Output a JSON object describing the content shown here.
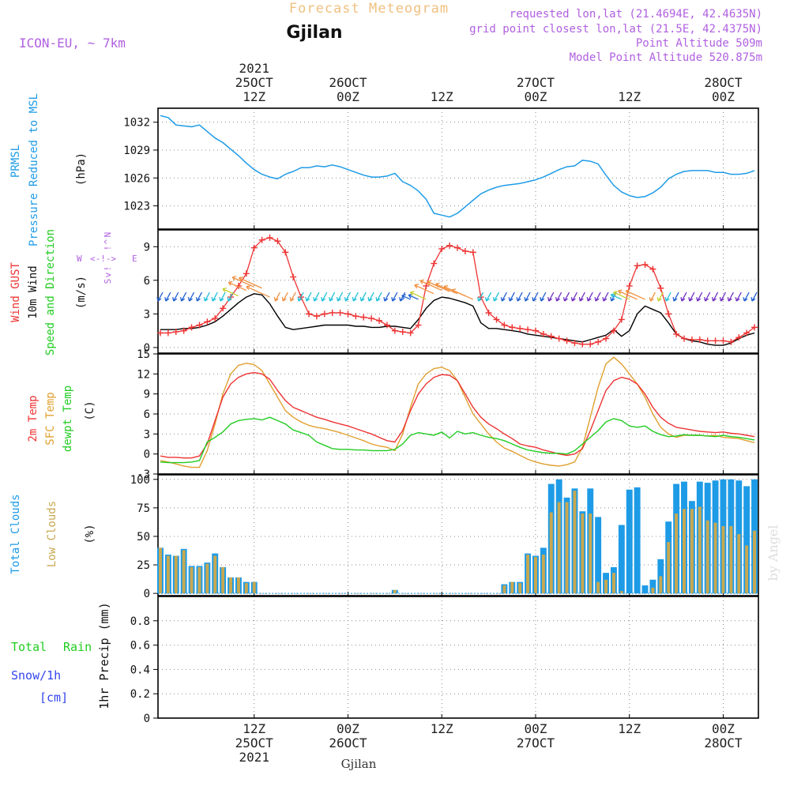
{
  "header": {
    "title": "Forecast Meteogram",
    "location": "Gjilan",
    "model": "ICON-EU, ~ 7km",
    "requested": "requested lon,lat (21.4694E, 42.4635N)",
    "grid_point": "grid point closest lon,lat (21.5E, 42.4375N)",
    "point_altitude": "Point Altitude 509m",
    "model_altitude": "Model Point Altitude 520.875m",
    "footer_location": "Gjilan",
    "watermark": "by Angel"
  },
  "colors": {
    "pressure": "#1e9be6",
    "gust": "#ee3333",
    "wind": "#000000",
    "temp": "#ee3333",
    "sfc": "#e0a030",
    "dewpt": "#22cc22",
    "total_clouds": "#1e9be6",
    "low_clouds": "#c8a850",
    "rain": "#22cc22",
    "snow": "#3344ee",
    "header_purple": "#b060e0",
    "title_orange": "#f0c080"
  },
  "time_axis": {
    "top": [
      {
        "t": 12,
        "lines": [
          "2021",
          "25OCT",
          "12Z"
        ]
      },
      {
        "t": 24,
        "lines": [
          "26OCT",
          "00Z"
        ]
      },
      {
        "t": 36,
        "lines": [
          "12Z"
        ]
      },
      {
        "t": 48,
        "lines": [
          "27OCT",
          "00Z"
        ]
      },
      {
        "t": 60,
        "lines": [
          "12Z"
        ]
      },
      {
        "t": 72,
        "lines": [
          "28OCT",
          "00Z"
        ]
      }
    ],
    "bottom": [
      {
        "t": 12,
        "lines": [
          "12Z",
          "25OCT",
          "2021"
        ]
      },
      {
        "t": 24,
        "lines": [
          "00Z",
          "26OCT"
        ]
      },
      {
        "t": 36,
        "lines": [
          "12Z"
        ]
      },
      {
        "t": 48,
        "lines": [
          "00Z",
          "27OCT"
        ]
      },
      {
        "t": 60,
        "lines": [
          "12Z"
        ]
      },
      {
        "t": 72,
        "lines": [
          "00Z",
          "28OCT"
        ]
      }
    ]
  },
  "labels": {
    "pressure": [
      "PRMSL",
      "Pressure Reduced to MSL",
      "(hPa)"
    ],
    "wind": [
      "Wind GUST",
      "10m Wind",
      "Speed and Direction",
      "(m/s)"
    ],
    "compass": {
      "n": "N",
      "s": "S",
      "w": "W",
      "e": "E",
      "arrow_up": "^",
      "arrow_down": "v",
      "horizontal": "<-!->",
      "north_bar": "!",
      "south_bar": "!"
    },
    "temp": [
      "2m Temp",
      "SFC Temp",
      "dewpt Temp",
      "(C)"
    ],
    "clouds": [
      "Total Clouds",
      "Low Clouds",
      "(%)"
    ],
    "precip": [
      "Total",
      "Rain",
      "Snow/1h",
      "[cm]",
      "1hr Precip (mm)"
    ]
  },
  "chart_data": [
    {
      "type": "line",
      "title": "PRMSL Pressure Reduced to MSL",
      "ylabel": "(hPa)",
      "ylim": [
        1020.5,
        1033.5
      ],
      "yticks": [
        1023,
        1026,
        1029,
        1032
      ],
      "x": [
        0,
        1,
        2,
        3,
        4,
        5,
        6,
        7,
        8,
        9,
        10,
        11,
        12,
        13,
        14,
        15,
        16,
        17,
        18,
        19,
        20,
        21,
        22,
        23,
        24,
        25,
        26,
        27,
        28,
        29,
        30,
        31,
        32,
        33,
        34,
        35,
        36,
        37,
        38,
        39,
        40,
        41,
        42,
        43,
        44,
        45,
        46,
        47,
        48,
        49,
        50,
        51,
        52,
        53,
        54,
        55,
        56,
        57,
        58,
        59,
        60,
        61,
        62,
        63,
        64,
        65,
        66,
        67,
        68,
        69,
        70,
        71,
        72,
        73,
        74,
        75,
        76
      ],
      "series": [
        {
          "name": "PRMSL",
          "values": [
            1032.7,
            1032.5,
            1031.7,
            1031.6,
            1031.5,
            1031.7,
            1031.0,
            1030.3,
            1029.8,
            1029.1,
            1028.4,
            1027.6,
            1026.9,
            1026.4,
            1026.1,
            1025.9,
            1026.4,
            1026.7,
            1027.1,
            1027.1,
            1027.3,
            1027.2,
            1027.4,
            1027.2,
            1026.9,
            1026.6,
            1026.3,
            1026.1,
            1026.1,
            1026.2,
            1026.5,
            1025.6,
            1025.2,
            1024.6,
            1023.7,
            1022.2,
            1022.0,
            1021.8,
            1022.2,
            1022.9,
            1023.6,
            1024.3,
            1024.7,
            1025.0,
            1025.2,
            1025.3,
            1025.4,
            1025.6,
            1025.8,
            1026.1,
            1026.5,
            1026.9,
            1027.2,
            1027.3,
            1027.9,
            1027.8,
            1027.5,
            1026.3,
            1025.2,
            1024.5,
            1024.1,
            1023.9,
            1024.0,
            1024.4,
            1025.0,
            1025.9,
            1026.4,
            1026.7,
            1026.8,
            1026.8,
            1026.8,
            1026.6,
            1026.6,
            1026.4,
            1026.4,
            1026.5,
            1026.8
          ]
        }
      ]
    },
    {
      "type": "line",
      "title": "Wind GUST / 10m Wind Speed and Direction",
      "ylabel": "(m/s)",
      "ylim": [
        -0.5,
        10.5
      ],
      "yticks": [
        0,
        3,
        6,
        9
      ],
      "series": [
        {
          "name": "Wind GUST",
          "values": [
            1.3,
            1.3,
            1.4,
            1.5,
            1.8,
            2.0,
            2.3,
            2.6,
            3.5,
            4.5,
            5.5,
            6.6,
            8.9,
            9.6,
            9.8,
            9.5,
            8.5,
            6.3,
            4.5,
            3.0,
            2.8,
            3.0,
            3.1,
            3.1,
            3.0,
            2.8,
            2.7,
            2.6,
            2.4,
            2.0,
            1.5,
            1.4,
            1.3,
            2.0,
            5.5,
            7.5,
            8.8,
            9.1,
            8.9,
            8.6,
            8.5,
            4.5,
            3.1,
            2.5,
            2.0,
            1.8,
            1.7,
            1.6,
            1.5,
            1.2,
            1.0,
            0.8,
            0.6,
            0.4,
            0.3,
            0.3,
            0.5,
            0.8,
            1.5,
            2.5,
            5.5,
            7.3,
            7.4,
            7.0,
            5.3,
            3.0,
            1.2,
            0.8,
            0.7,
            0.7,
            0.6,
            0.6,
            0.6,
            0.5,
            0.9,
            1.3,
            1.8
          ]
        },
        {
          "name": "10m Wind",
          "values": [
            1.6,
            1.6,
            1.6,
            1.7,
            1.7,
            1.8,
            2.0,
            2.3,
            2.8,
            3.4,
            4.0,
            4.5,
            4.8,
            4.7,
            3.9,
            2.8,
            1.8,
            1.6,
            1.7,
            1.8,
            1.9,
            2.0,
            2.0,
            2.0,
            2.0,
            1.9,
            1.9,
            1.8,
            1.8,
            1.9,
            1.9,
            1.8,
            1.7,
            2.5,
            3.5,
            4.2,
            4.5,
            4.4,
            4.2,
            4.0,
            3.7,
            2.2,
            1.7,
            1.7,
            1.6,
            1.5,
            1.4,
            1.2,
            1.1,
            1.0,
            0.9,
            0.8,
            0.7,
            0.6,
            0.5,
            0.7,
            0.9,
            1.1,
            1.6,
            1.0,
            1.5,
            3.0,
            3.7,
            3.4,
            3.1,
            2.2,
            1.2,
            0.8,
            0.6,
            0.5,
            0.3,
            0.2,
            0.2,
            0.4,
            0.8,
            1.1,
            1.3
          ]
        }
      ]
    },
    {
      "type": "line",
      "title": "2m Temp / SFC Temp / dewpt Temp",
      "ylabel": "(C)",
      "ylim": [
        -3,
        15
      ],
      "yticks": [
        -3,
        0,
        3,
        6,
        9,
        12,
        15
      ],
      "series": [
        {
          "name": "2m Temp",
          "values": [
            -0.3,
            -0.5,
            -0.5,
            -0.6,
            -0.6,
            -0.3,
            1.5,
            5.0,
            8.5,
            10.5,
            11.5,
            12.0,
            12.2,
            12.0,
            11.2,
            9.5,
            8.0,
            7.0,
            6.5,
            6.0,
            5.5,
            5.2,
            4.8,
            4.5,
            4.2,
            3.8,
            3.4,
            3.0,
            2.5,
            2.0,
            1.8,
            3.5,
            6.5,
            9.0,
            10.5,
            11.5,
            11.9,
            11.8,
            11.0,
            9.0,
            7.0,
            5.5,
            4.5,
            3.8,
            3.0,
            2.3,
            1.5,
            1.2,
            1.0,
            0.6,
            0.3,
            0.0,
            -0.2,
            0.0,
            0.8,
            3.5,
            6.5,
            9.5,
            11.0,
            11.5,
            11.2,
            10.5,
            9.0,
            7.0,
            5.5,
            4.6,
            4.0,
            3.8,
            3.6,
            3.4,
            3.3,
            3.2,
            3.3,
            3.1,
            3.0,
            2.8,
            2.6
          ]
        },
        {
          "name": "SFC Temp",
          "values": [
            -1.0,
            -1.2,
            -1.5,
            -1.8,
            -2.0,
            -2.0,
            0.5,
            4.5,
            9.0,
            12.0,
            13.3,
            13.6,
            13.4,
            12.5,
            10.5,
            8.5,
            6.5,
            5.5,
            4.8,
            4.3,
            4.0,
            3.8,
            3.5,
            3.2,
            2.8,
            2.4,
            2.0,
            1.5,
            1.2,
            1.0,
            0.5,
            3.0,
            7.0,
            10.5,
            12.0,
            12.8,
            13.0,
            12.5,
            11.0,
            8.5,
            6.0,
            4.5,
            3.0,
            1.8,
            0.9,
            0.4,
            -0.2,
            -0.8,
            -1.2,
            -1.5,
            -1.7,
            -1.8,
            -1.6,
            -1.2,
            1.0,
            5.5,
            10.0,
            13.5,
            14.5,
            13.5,
            12.0,
            10.5,
            8.5,
            6.0,
            4.0,
            3.0,
            2.5,
            2.8,
            2.8,
            2.8,
            2.7,
            2.8,
            2.5,
            2.4,
            2.3,
            2.0,
            1.7
          ]
        },
        {
          "name": "dewpt Temp",
          "values": [
            -1.2,
            -1.3,
            -1.3,
            -1.3,
            -1.2,
            -1.0,
            1.8,
            2.5,
            3.3,
            4.5,
            5.0,
            5.2,
            5.3,
            5.1,
            5.5,
            5.0,
            4.5,
            3.6,
            3.2,
            2.8,
            1.8,
            1.3,
            0.8,
            0.7,
            0.7,
            0.6,
            0.6,
            0.5,
            0.5,
            0.5,
            0.7,
            1.5,
            2.8,
            3.2,
            3.0,
            2.8,
            3.3,
            2.4,
            3.4,
            3.0,
            3.2,
            2.8,
            2.5,
            2.3,
            2.0,
            1.5,
            1.0,
            0.6,
            0.4,
            0.2,
            0.1,
            0.1,
            0.0,
            0.5,
            1.5,
            2.5,
            3.5,
            4.8,
            5.3,
            5.0,
            4.2,
            4.0,
            4.2,
            3.4,
            2.9,
            2.6,
            2.7,
            2.9,
            2.8,
            2.8,
            2.7,
            2.6,
            2.8,
            2.6,
            2.5,
            2.3,
            2.1
          ]
        }
      ]
    },
    {
      "type": "bar",
      "title": "Total Clouds / Low Clouds",
      "ylabel": "(%)",
      "ylim": [
        -2,
        104
      ],
      "yticks": [
        0,
        25,
        50,
        75,
        100
      ],
      "series": [
        {
          "name": "Total Clouds",
          "values": [
            40,
            34,
            33,
            39,
            24,
            24,
            27,
            35,
            23,
            14,
            14,
            10,
            10,
            0,
            0,
            0,
            0,
            0,
            0,
            0,
            0,
            0,
            0,
            0,
            0,
            0,
            0,
            0,
            0,
            0,
            3,
            0,
            0,
            0,
            0,
            0,
            0,
            0,
            0,
            0,
            0,
            0,
            0,
            0,
            8,
            10,
            10,
            35,
            33,
            40,
            96,
            100,
            84,
            92,
            72,
            92,
            67,
            18,
            23,
            60,
            91,
            93,
            7,
            12,
            30,
            63,
            96,
            98,
            81,
            98,
            97,
            99,
            100,
            100,
            99,
            94,
            100
          ]
        },
        {
          "name": "Low Clouds",
          "values": [
            40,
            33,
            33,
            38,
            23,
            23,
            26,
            33,
            23,
            14,
            14,
            9,
            10,
            0,
            0,
            0,
            0,
            0,
            0,
            0,
            0,
            0,
            0,
            0,
            0,
            0,
            0,
            0,
            0,
            0,
            3,
            0,
            0,
            0,
            0,
            0,
            0,
            0,
            0,
            0,
            0,
            0,
            0,
            0,
            7,
            10,
            9,
            34,
            32,
            34,
            71,
            80,
            80,
            90,
            70,
            70,
            10,
            12,
            18,
            2,
            0,
            0,
            0,
            5,
            15,
            45,
            70,
            74,
            74,
            76,
            64,
            62,
            59,
            59,
            52,
            42,
            55
          ]
        }
      ]
    },
    {
      "type": "bar",
      "title": "Total Rain / Snow 1h",
      "ylabel": "1hr Precip (mm)",
      "ylim": [
        0,
        1.0
      ],
      "yticks": [
        0,
        0.2,
        0.4,
        0.6,
        0.8
      ],
      "ytick_labels": [
        "0",
        "0.2",
        "0.4",
        "0.6",
        "0.8"
      ],
      "series": [
        {
          "name": "Total Rain",
          "values": [
            0,
            0,
            0,
            0,
            0,
            0,
            0,
            0,
            0,
            0,
            0,
            0,
            0,
            0,
            0,
            0,
            0,
            0,
            0,
            0,
            0,
            0,
            0,
            0,
            0,
            0,
            0,
            0,
            0,
            0,
            0,
            0,
            0,
            0,
            0,
            0,
            0,
            0,
            0,
            0,
            0,
            0,
            0,
            0,
            0,
            0,
            0,
            0,
            0,
            0,
            0,
            0,
            0,
            0,
            0,
            0,
            0,
            0,
            0,
            0,
            0,
            0,
            0,
            0,
            0,
            0,
            0,
            0,
            0,
            0,
            0,
            0,
            0,
            0,
            0,
            0,
            0
          ]
        },
        {
          "name": "Snow/1h",
          "values": [
            0,
            0,
            0,
            0,
            0,
            0,
            0,
            0,
            0,
            0,
            0,
            0,
            0,
            0,
            0,
            0,
            0,
            0,
            0,
            0,
            0,
            0,
            0,
            0,
            0,
            0,
            0,
            0,
            0,
            0,
            0,
            0,
            0,
            0,
            0,
            0,
            0,
            0,
            0,
            0,
            0,
            0,
            0,
            0,
            0,
            0,
            0,
            0,
            0,
            0,
            0,
            0,
            0,
            0,
            0,
            0,
            0,
            0,
            0,
            0,
            0,
            0,
            0,
            0,
            0,
            0,
            0,
            0,
            0,
            0,
            0,
            0,
            0,
            0,
            0,
            0,
            0
          ]
        }
      ]
    }
  ],
  "wind_barbs": {
    "directions": [
      "NE",
      "NE",
      "NE",
      "NE",
      "NE",
      "NE",
      "NE",
      "NE",
      "NE",
      "NE",
      "NW",
      "NW",
      "NW",
      "NW",
      "NW",
      "NE",
      "NE",
      "NE",
      "NE",
      "NE",
      "NE",
      "NE",
      "NE",
      "NE",
      "NE",
      "NE",
      "NE",
      "NE",
      "NE",
      "NE",
      "NE",
      "NE",
      "NW",
      "NW",
      "NW",
      "NW",
      "NW",
      "NW",
      "NW",
      "NW",
      "NW",
      "NE",
      "NE",
      "NE",
      "NE",
      "NE",
      "NE",
      "NE",
      "NE",
      "NE",
      "NE",
      "NE",
      "NE",
      "NE",
      "NE",
      "NE",
      "NE",
      "NE",
      "NE",
      "NW",
      "NW",
      "NW",
      "NW",
      "NE",
      "NE",
      "NE",
      "NE",
      "NE",
      "NE",
      "NE",
      "NE",
      "NE",
      "NE",
      "NE",
      "NE",
      "NE",
      "NE"
    ]
  }
}
